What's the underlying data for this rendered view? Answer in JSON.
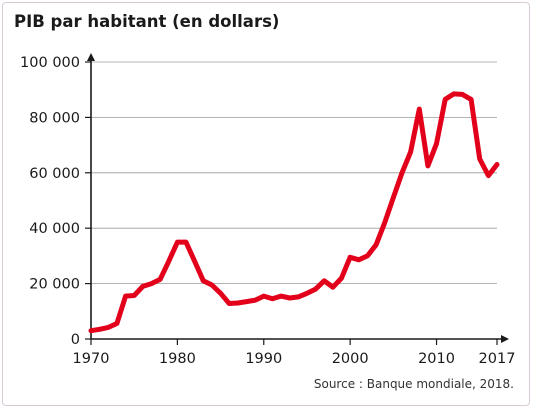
{
  "chart_data": {
    "type": "line",
    "title": "PIB par habitant (en dollars)",
    "source": "Source : Banque mondiale, 2018.",
    "xlim": [
      1970,
      2017
    ],
    "ylim": [
      0,
      100000
    ],
    "x_ticks": [
      {
        "value": 1970,
        "label": "1970"
      },
      {
        "value": 1980,
        "label": "1980"
      },
      {
        "value": 1990,
        "label": "1990"
      },
      {
        "value": 2000,
        "label": "2000"
      },
      {
        "value": 2010,
        "label": "2010"
      },
      {
        "value": 2017,
        "label": "2017"
      }
    ],
    "y_ticks": [
      {
        "value": 0,
        "label": "0"
      },
      {
        "value": 20000,
        "label": "20 000"
      },
      {
        "value": 40000,
        "label": "40 000"
      },
      {
        "value": 60000,
        "label": "60 000"
      },
      {
        "value": 80000,
        "label": "80 000"
      },
      {
        "value": 100000,
        "label": "100 000"
      }
    ],
    "grid": true,
    "line_color": "#e3001b",
    "series": [
      {
        "x": [
          1970,
          1971,
          1972,
          1973,
          1974,
          1975,
          1976,
          1977,
          1978,
          1979,
          1980,
          1981,
          1982,
          1983,
          1984,
          1985,
          1986,
          1987,
          1988,
          1989,
          1990,
          1991,
          1992,
          1993,
          1994,
          1995,
          1996,
          1997,
          1998,
          1999,
          2000,
          2001,
          2002,
          2003,
          2004,
          2005,
          2006,
          2007,
          2008,
          2009,
          2010,
          2011,
          2012,
          2013,
          2014,
          2015,
          2016,
          2017
        ],
        "y": [
          3000,
          3500,
          4200,
          5600,
          15500,
          15700,
          19000,
          20000,
          21500,
          28000,
          35000,
          35000,
          28000,
          21000,
          19500,
          16500,
          12800,
          13000,
          13500,
          14000,
          15500,
          14500,
          15500,
          14800,
          15200,
          16500,
          18000,
          21000,
          18700,
          22000,
          29500,
          28600,
          30000,
          34000,
          42000,
          51000,
          60000,
          67500,
          83000,
          62500,
          70500,
          86500,
          88500,
          88300,
          86500,
          65000,
          59000,
          63000
        ]
      }
    ]
  }
}
